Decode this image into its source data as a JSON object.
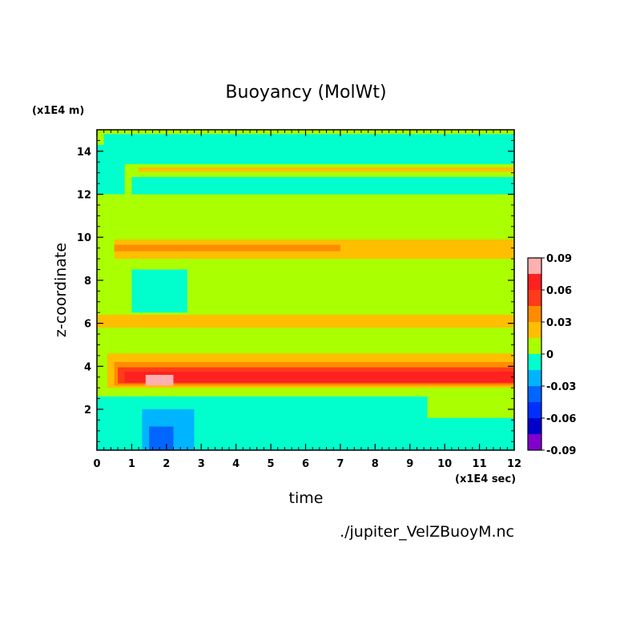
{
  "chart_data": {
    "type": "heatmap",
    "title": "Buoyancy (MolWt)",
    "xlabel": "time",
    "ylabel": "z-coordinate",
    "x_multiplier": "(x1E4 sec)",
    "y_multiplier": "(x1E4 m)",
    "xlim": [
      0,
      12
    ],
    "ylim": [
      0.1,
      15
    ],
    "x_ticks": [
      "0",
      "1",
      "2",
      "3",
      "4",
      "5",
      "6",
      "7",
      "8",
      "9",
      "10",
      "11",
      "12"
    ],
    "y_ticks": [
      "2",
      "4",
      "6",
      "8",
      "10",
      "12",
      "14"
    ],
    "colorbar": {
      "range": [
        -0.09,
        0.09
      ],
      "tick_labels": [
        "0.09",
        "0.06",
        "0.03",
        "0",
        "-0.03",
        "-0.06",
        "-0.09"
      ],
      "levels": [
        {
          "from": 0.075,
          "to": 0.09,
          "color": "#ffb0b0"
        },
        {
          "from": 0.06,
          "to": 0.075,
          "color": "#ff2020"
        },
        {
          "from": 0.045,
          "to": 0.06,
          "color": "#ff3b1a"
        },
        {
          "from": 0.03,
          "to": 0.045,
          "color": "#ff8c00"
        },
        {
          "from": 0.015,
          "to": 0.03,
          "color": "#ffbf00"
        },
        {
          "from": 0.0,
          "to": 0.015,
          "color": "#aaff00"
        },
        {
          "from": -0.015,
          "to": 0.0,
          "color": "#00ffcc"
        },
        {
          "from": -0.03,
          "to": -0.015,
          "color": "#00b4ff"
        },
        {
          "from": -0.045,
          "to": -0.03,
          "color": "#0066ff"
        },
        {
          "from": -0.06,
          "to": -0.045,
          "color": "#0030ff"
        },
        {
          "from": -0.075,
          "to": -0.06,
          "color": "#0000cc"
        },
        {
          "from": -0.09,
          "to": -0.075,
          "color": "#8000cc"
        }
      ]
    },
    "bands": [
      {
        "t0": 0.0,
        "t1": 12.0,
        "z0": 0.1,
        "z1": 15.0,
        "level": 0.0
      },
      {
        "t0": 0.2,
        "t1": 12.0,
        "z0": 13.4,
        "z1": 14.8,
        "level": -0.01
      },
      {
        "t0": 0.0,
        "t1": 0.8,
        "z0": 12.0,
        "z1": 14.3,
        "level": -0.01
      },
      {
        "t0": 1.0,
        "t1": 12.0,
        "z0": 12.0,
        "z1": 12.8,
        "level": -0.01
      },
      {
        "t0": 1.2,
        "t1": 12.0,
        "z0": 13.05,
        "z1": 13.25,
        "level": 0.02
      },
      {
        "t0": 0.5,
        "t1": 12.0,
        "z0": 9.0,
        "z1": 9.9,
        "level": 0.02
      },
      {
        "t0": 0.5,
        "t1": 7.0,
        "z0": 9.35,
        "z1": 9.65,
        "level": 0.035
      },
      {
        "t0": 0.0,
        "t1": 12.0,
        "z0": 5.8,
        "z1": 6.4,
        "level": 0.02
      },
      {
        "t0": 1.0,
        "t1": 2.6,
        "z0": 6.5,
        "z1": 8.5,
        "level": -0.01
      },
      {
        "t0": 0.3,
        "t1": 12.0,
        "z0": 3.0,
        "z1": 4.6,
        "level": 0.02
      },
      {
        "t0": 0.5,
        "t1": 12.0,
        "z0": 3.1,
        "z1": 4.2,
        "level": 0.035
      },
      {
        "t0": 0.6,
        "t1": 12.0,
        "z0": 3.2,
        "z1": 3.95,
        "level": 0.05
      },
      {
        "t0": 0.8,
        "t1": 12.0,
        "z0": 3.25,
        "z1": 3.75,
        "level": 0.065
      },
      {
        "t0": 1.4,
        "t1": 2.2,
        "z0": 3.1,
        "z1": 3.6,
        "level": 0.08
      },
      {
        "t0": 0.0,
        "t1": 9.5,
        "z0": 0.1,
        "z1": 2.6,
        "level": -0.01
      },
      {
        "t0": 9.5,
        "t1": 12.0,
        "z0": 0.1,
        "z1": 1.6,
        "level": -0.01
      },
      {
        "t0": 1.3,
        "t1": 2.8,
        "z0": 0.1,
        "z1": 2.0,
        "level": -0.02
      },
      {
        "t0": 1.5,
        "t1": 2.2,
        "z0": 0.1,
        "z1": 1.2,
        "level": -0.04
      }
    ],
    "source_file": "./jupiter_VelZBuoyM.nc"
  }
}
